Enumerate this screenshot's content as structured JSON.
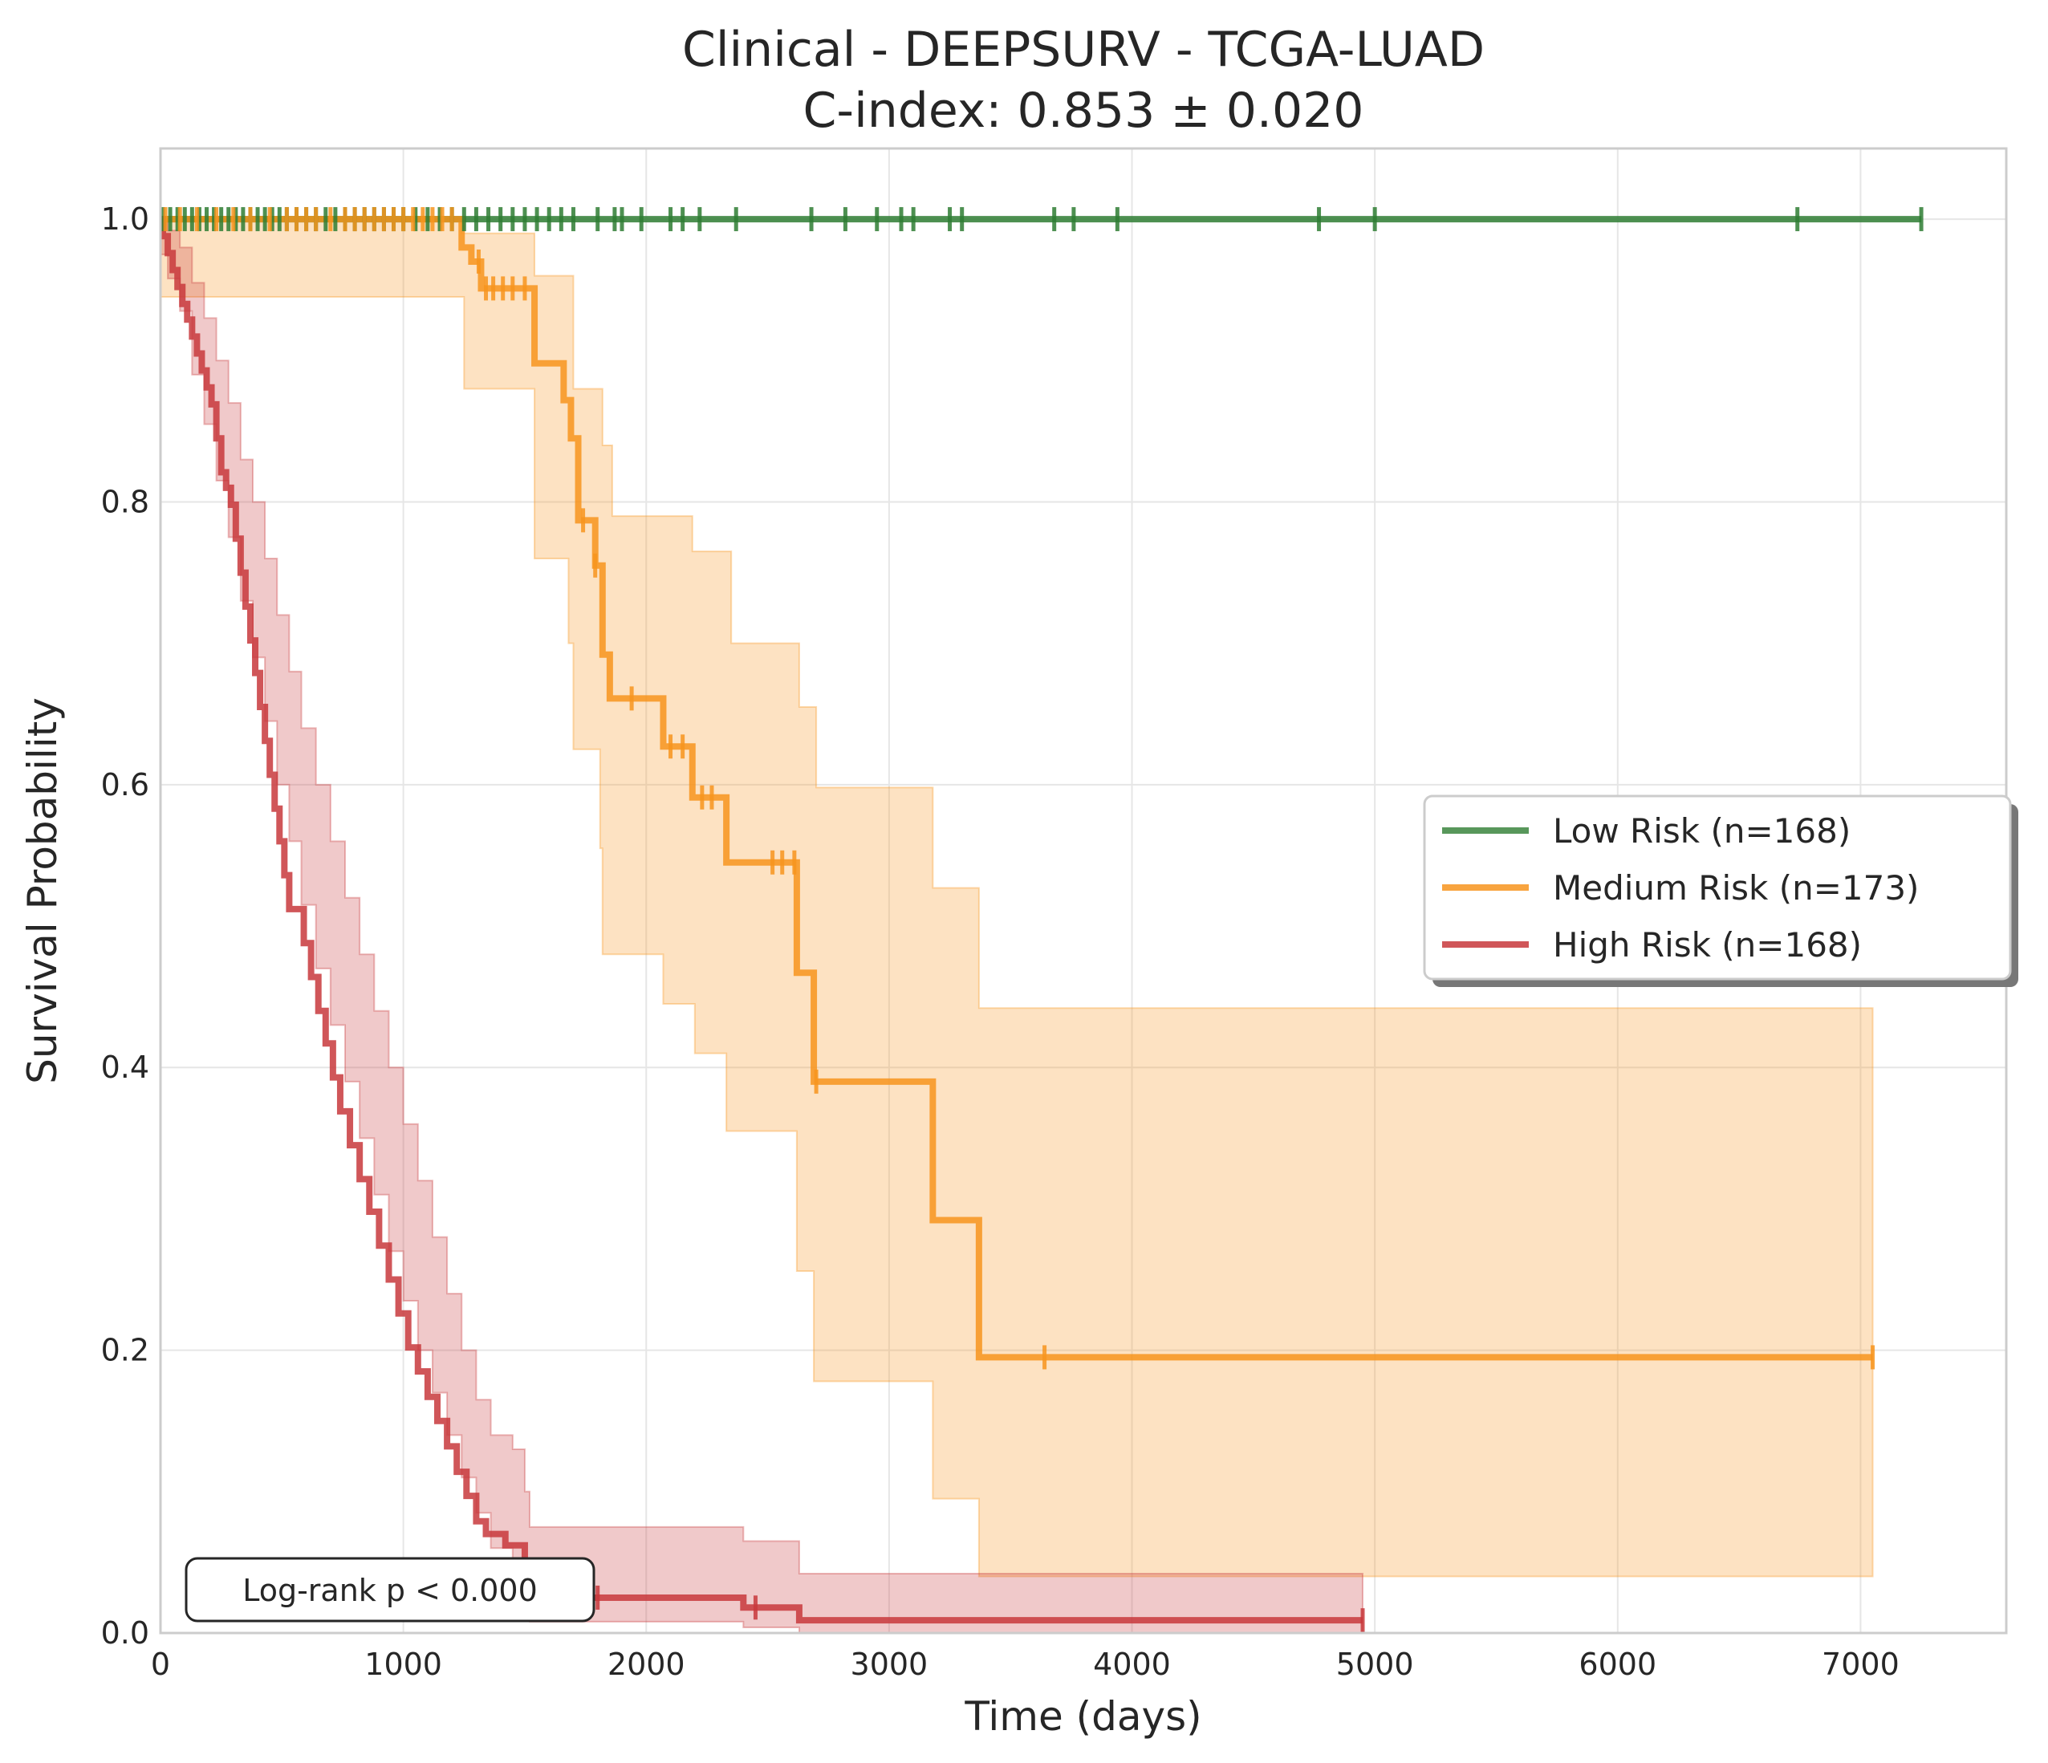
{
  "chart_data": {
    "type": "line",
    "subtype": "kaplan-meier survival curves with confidence bands",
    "title": "Clinical - DEEPSURV - TCGA-LUAD",
    "subtitle": "C-index: 0.853 ± 0.020",
    "xlabel": "Time (days)",
    "ylabel": "Survival Probability",
    "xlim": [
      0,
      7600
    ],
    "ylim": [
      0,
      1.05
    ],
    "xticks": [
      0,
      1000,
      2000,
      3000,
      4000,
      5000,
      6000,
      7000
    ],
    "xtick_labels": [
      "0",
      "1000",
      "2000",
      "3000",
      "4000",
      "5000",
      "6000",
      "7000"
    ],
    "yticks": [
      0.0,
      0.2,
      0.4,
      0.6,
      0.8,
      1.0
    ],
    "ytick_labels": [
      "0.0",
      "0.2",
      "0.4",
      "0.6",
      "0.8",
      "1.0"
    ],
    "grid": true,
    "legend_position": "center-right",
    "annotation": "Log-rank p < 0.000",
    "series": [
      {
        "name": "Low Risk (n=168)",
        "color": "#2e7d32",
        "step": [
          [
            0,
            1.0
          ],
          [
            7250,
            1.0
          ]
        ],
        "ci_upper": [],
        "ci_lower": [],
        "censor_times": [
          10,
          40,
          70,
          100,
          130,
          160,
          190,
          220,
          250,
          280,
          310,
          340,
          370,
          400,
          430,
          460,
          490,
          520,
          560,
          600,
          640,
          680,
          720,
          760,
          800,
          840,
          880,
          920,
          960,
          1000,
          1050,
          1100,
          1150,
          1200,
          1250,
          1300,
          1350,
          1400,
          1450,
          1500,
          1550,
          1600,
          1650,
          1700,
          1800,
          1870,
          1900,
          1980,
          2100,
          2150,
          2220,
          2370,
          2680,
          2820,
          2950,
          3050,
          3100,
          3250,
          3300,
          3680,
          3760,
          3940,
          4770,
          5000,
          6740,
          7250
        ]
      },
      {
        "name": "Medium Risk (n=173)",
        "color": "#f7941d",
        "step": [
          [
            0,
            1.0
          ],
          [
            1200,
            1.0
          ],
          [
            1240,
            0.98
          ],
          [
            1280,
            0.97
          ],
          [
            1320,
            0.951
          ],
          [
            1530,
            0.951
          ],
          [
            1540,
            0.898
          ],
          [
            1640,
            0.898
          ],
          [
            1660,
            0.872
          ],
          [
            1690,
            0.845
          ],
          [
            1720,
            0.787
          ],
          [
            1770,
            0.787
          ],
          [
            1790,
            0.755
          ],
          [
            1820,
            0.692
          ],
          [
            1850,
            0.661
          ],
          [
            2060,
            0.661
          ],
          [
            2070,
            0.627
          ],
          [
            2180,
            0.627
          ],
          [
            2190,
            0.591
          ],
          [
            2320,
            0.591
          ],
          [
            2330,
            0.545
          ],
          [
            2610,
            0.545
          ],
          [
            2620,
            0.467
          ],
          [
            2680,
            0.467
          ],
          [
            2690,
            0.39
          ],
          [
            3170,
            0.39
          ],
          [
            3180,
            0.292
          ],
          [
            3360,
            0.292
          ],
          [
            3370,
            0.195
          ],
          [
            7050,
            0.195
          ]
        ],
        "ci_upper": [
          [
            0,
            1.0
          ],
          [
            1200,
            1.0
          ],
          [
            1240,
            0.99
          ],
          [
            1530,
            0.99
          ],
          [
            1540,
            0.96
          ],
          [
            1660,
            0.96
          ],
          [
            1700,
            0.88
          ],
          [
            1790,
            0.88
          ],
          [
            1820,
            0.84
          ],
          [
            1860,
            0.79
          ],
          [
            2180,
            0.79
          ],
          [
            2190,
            0.765
          ],
          [
            2340,
            0.765
          ],
          [
            2350,
            0.7
          ],
          [
            2620,
            0.7
          ],
          [
            2630,
            0.655
          ],
          [
            2690,
            0.655
          ],
          [
            2700,
            0.598
          ],
          [
            3170,
            0.598
          ],
          [
            3180,
            0.527
          ],
          [
            3360,
            0.527
          ],
          [
            3370,
            0.442
          ],
          [
            7050,
            0.442
          ]
        ],
        "ci_lower": [
          [
            0,
            0.945
          ],
          [
            1240,
            0.945
          ],
          [
            1250,
            0.88
          ],
          [
            1530,
            0.88
          ],
          [
            1540,
            0.76
          ],
          [
            1660,
            0.76
          ],
          [
            1680,
            0.7
          ],
          [
            1700,
            0.625
          ],
          [
            1800,
            0.625
          ],
          [
            1810,
            0.555
          ],
          [
            1820,
            0.48
          ],
          [
            2060,
            0.48
          ],
          [
            2070,
            0.445
          ],
          [
            2190,
            0.445
          ],
          [
            2200,
            0.41
          ],
          [
            2320,
            0.41
          ],
          [
            2330,
            0.355
          ],
          [
            2610,
            0.355
          ],
          [
            2620,
            0.256
          ],
          [
            2680,
            0.256
          ],
          [
            2690,
            0.178
          ],
          [
            3170,
            0.178
          ],
          [
            3180,
            0.095
          ],
          [
            3360,
            0.095
          ],
          [
            3370,
            0.04
          ],
          [
            7050,
            0.04
          ]
        ],
        "censor_times": [
          20,
          80,
          150,
          230,
          300,
          370,
          450,
          520,
          560,
          600,
          640,
          700,
          760,
          800,
          840,
          880,
          920,
          960,
          1000,
          1040,
          1080,
          1120,
          1160,
          1200,
          1310,
          1340,
          1370,
          1410,
          1450,
          1500,
          1740,
          1790,
          1940,
          2100,
          2150,
          2230,
          2270,
          2520,
          2560,
          2610,
          2700,
          3640,
          7050
        ]
      },
      {
        "name": "High Risk (n=168)",
        "color": "#c8383c",
        "step": [
          [
            0,
            1.0
          ],
          [
            10,
            0.988
          ],
          [
            30,
            0.976
          ],
          [
            50,
            0.964
          ],
          [
            70,
            0.952
          ],
          [
            90,
            0.94
          ],
          [
            110,
            0.929
          ],
          [
            130,
            0.917
          ],
          [
            150,
            0.905
          ],
          [
            170,
            0.893
          ],
          [
            190,
            0.881
          ],
          [
            210,
            0.869
          ],
          [
            230,
            0.845
          ],
          [
            250,
            0.821
          ],
          [
            270,
            0.81
          ],
          [
            290,
            0.798
          ],
          [
            310,
            0.774
          ],
          [
            330,
            0.75
          ],
          [
            350,
            0.726
          ],
          [
            370,
            0.702
          ],
          [
            390,
            0.679
          ],
          [
            410,
            0.655
          ],
          [
            430,
            0.631
          ],
          [
            450,
            0.607
          ],
          [
            470,
            0.583
          ],
          [
            490,
            0.56
          ],
          [
            510,
            0.536
          ],
          [
            530,
            0.512
          ],
          [
            570,
            0.512
          ],
          [
            590,
            0.488
          ],
          [
            620,
            0.464
          ],
          [
            650,
            0.44
          ],
          [
            680,
            0.417
          ],
          [
            710,
            0.393
          ],
          [
            740,
            0.369
          ],
          [
            780,
            0.345
          ],
          [
            820,
            0.321
          ],
          [
            860,
            0.298
          ],
          [
            900,
            0.274
          ],
          [
            940,
            0.25
          ],
          [
            980,
            0.226
          ],
          [
            1020,
            0.202
          ],
          [
            1060,
            0.185
          ],
          [
            1100,
            0.167
          ],
          [
            1140,
            0.15
          ],
          [
            1180,
            0.132
          ],
          [
            1220,
            0.114
          ],
          [
            1260,
            0.097
          ],
          [
            1300,
            0.079
          ],
          [
            1340,
            0.07
          ],
          [
            1420,
            0.062
          ],
          [
            1500,
            0.044
          ],
          [
            1520,
            0.025
          ],
          [
            2380,
            0.025
          ],
          [
            2400,
            0.018
          ],
          [
            2620,
            0.018
          ],
          [
            2630,
            0.009
          ],
          [
            4950,
            0.009
          ]
        ],
        "ci_upper": [
          [
            0,
            1.0
          ],
          [
            30,
            0.992
          ],
          [
            80,
            0.98
          ],
          [
            130,
            0.955
          ],
          [
            180,
            0.93
          ],
          [
            230,
            0.9
          ],
          [
            280,
            0.87
          ],
          [
            330,
            0.83
          ],
          [
            380,
            0.8
          ],
          [
            430,
            0.76
          ],
          [
            480,
            0.72
          ],
          [
            530,
            0.68
          ],
          [
            580,
            0.64
          ],
          [
            640,
            0.6
          ],
          [
            700,
            0.56
          ],
          [
            760,
            0.52
          ],
          [
            820,
            0.48
          ],
          [
            880,
            0.44
          ],
          [
            940,
            0.4
          ],
          [
            1000,
            0.36
          ],
          [
            1060,
            0.32
          ],
          [
            1120,
            0.28
          ],
          [
            1180,
            0.24
          ],
          [
            1240,
            0.2
          ],
          [
            1300,
            0.165
          ],
          [
            1360,
            0.14
          ],
          [
            1450,
            0.13
          ],
          [
            1500,
            0.1
          ],
          [
            1520,
            0.075
          ],
          [
            2380,
            0.075
          ],
          [
            2400,
            0.065
          ],
          [
            2620,
            0.065
          ],
          [
            2630,
            0.042
          ],
          [
            4950,
            0.042
          ]
        ],
        "ci_lower": [
          [
            0,
            0.975
          ],
          [
            30,
            0.958
          ],
          [
            80,
            0.935
          ],
          [
            130,
            0.89
          ],
          [
            180,
            0.855
          ],
          [
            230,
            0.815
          ],
          [
            280,
            0.775
          ],
          [
            330,
            0.73
          ],
          [
            380,
            0.69
          ],
          [
            430,
            0.645
          ],
          [
            480,
            0.6
          ],
          [
            530,
            0.56
          ],
          [
            580,
            0.515
          ],
          [
            640,
            0.47
          ],
          [
            700,
            0.43
          ],
          [
            760,
            0.39
          ],
          [
            820,
            0.35
          ],
          [
            880,
            0.31
          ],
          [
            940,
            0.27
          ],
          [
            1000,
            0.235
          ],
          [
            1060,
            0.2
          ],
          [
            1120,
            0.17
          ],
          [
            1180,
            0.14
          ],
          [
            1240,
            0.11
          ],
          [
            1300,
            0.085
          ],
          [
            1360,
            0.06
          ],
          [
            1450,
            0.045
          ],
          [
            1500,
            0.03
          ],
          [
            1520,
            0.008
          ],
          [
            2380,
            0.008
          ],
          [
            2400,
            0.004
          ],
          [
            2620,
            0.004
          ],
          [
            2630,
            0.0
          ],
          [
            4950,
            0.0
          ]
        ],
        "censor_times": [
          1600,
          1700,
          1800,
          2450,
          4950
        ]
      }
    ]
  }
}
